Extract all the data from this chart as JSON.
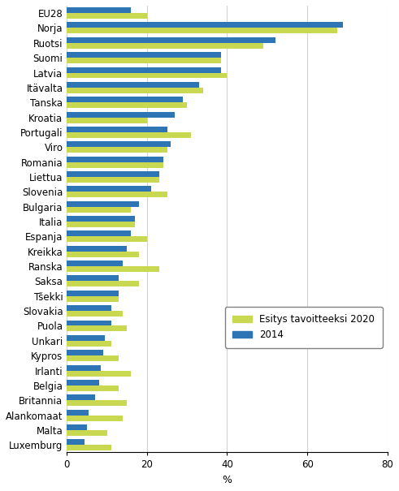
{
  "categories": [
    "EU28",
    "Norja",
    "Ruotsi",
    "Suomi",
    "Latvia",
    "Itävalta",
    "Tanska",
    "Kroatia",
    "Portugali",
    "Viro",
    "Romania",
    "Liettua",
    "Slovenia",
    "Bulgaria",
    "Italia",
    "Espanja",
    "Kreikka",
    "Ranska",
    "Saksa",
    "Tšekki",
    "Slovakia",
    "Puola",
    "Unkari",
    "Kypros",
    "Irlanti",
    "Belgia",
    "Britannia",
    "Alankomaat",
    "Malta",
    "Luxemburg"
  ],
  "target_2020": [
    20,
    67.5,
    49,
    38.5,
    40,
    34,
    30,
    20,
    31,
    25,
    24,
    23,
    25,
    16,
    17,
    20,
    18,
    23,
    18,
    13,
    14,
    15,
    11,
    13,
    16,
    13,
    15,
    14,
    10,
    11
  ],
  "val_2014": [
    16,
    69,
    52,
    38.5,
    38.5,
    33,
    29,
    27,
    25,
    26,
    24,
    23,
    21,
    18,
    17,
    16,
    15,
    14,
    13,
    13,
    11,
    11,
    9.5,
    9,
    8.5,
    8,
    7,
    5.5,
    5,
    4.5
  ],
  "color_2020": "#c8d850",
  "color_2014": "#2e75b6",
  "xlabel": "%",
  "xlim": [
    0,
    80
  ],
  "xticks": [
    0,
    20,
    40,
    60,
    80
  ],
  "legend_labels": [
    "Esitys tavoitteeksi 2020",
    "2014"
  ],
  "bar_height": 0.38,
  "figsize": [
    4.91,
    6.05
  ],
  "dpi": 100
}
